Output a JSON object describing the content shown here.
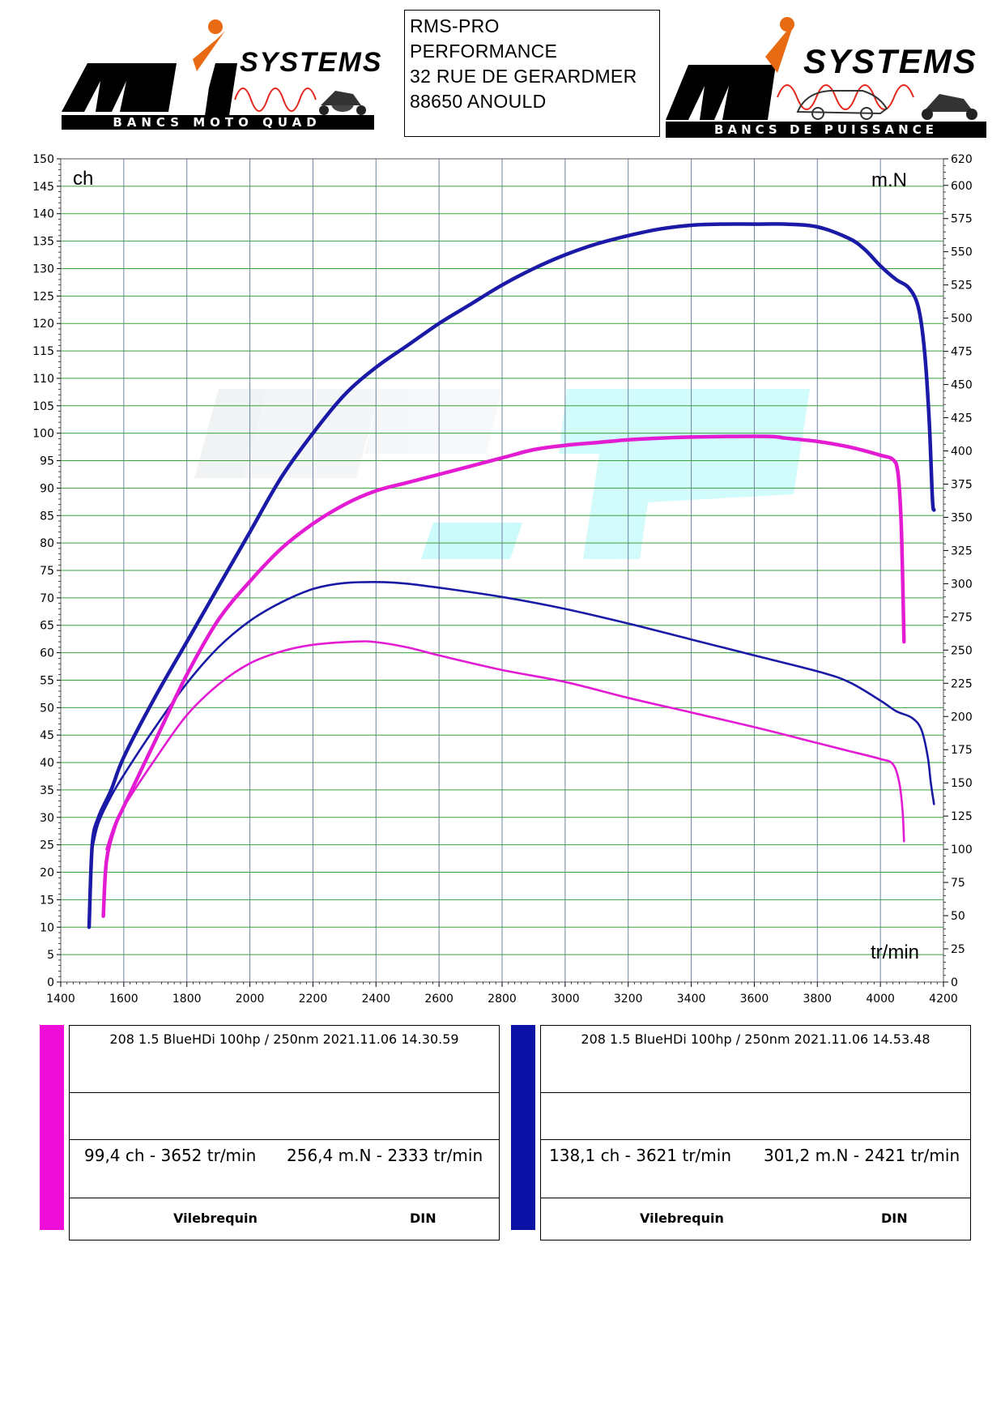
{
  "header": {
    "left_logo": {
      "brand_text": "SYSTEMS",
      "letters": "Mi",
      "tagline": "BANCS MOTO QUAD"
    },
    "right_logo": {
      "brand_text": "SYSTEMS",
      "letters": "Mi",
      "tagline": "BANCS DE PUISSANCE"
    },
    "address": [
      "RMS-PRO",
      "PERFORMANCE",
      "32 RUE DE GERARDMER",
      "88650 ANOULD"
    ]
  },
  "chart_data": {
    "type": "line",
    "x_label": "tr/min",
    "y_left_label": "ch",
    "y_right_label": "m.N",
    "xlim": [
      1400,
      4200
    ],
    "y_left_lim": [
      0,
      150
    ],
    "y_right_lim": [
      0,
      620
    ],
    "x_ticks": [
      1400,
      1600,
      1800,
      2000,
      2200,
      2400,
      2600,
      2800,
      3000,
      3200,
      3400,
      3600,
      3800,
      4000,
      4200
    ],
    "y_left_ticks": [
      0,
      5,
      10,
      15,
      20,
      25,
      30,
      35,
      40,
      45,
      50,
      55,
      60,
      65,
      70,
      75,
      80,
      85,
      90,
      95,
      100,
      105,
      110,
      115,
      120,
      125,
      130,
      135,
      140,
      145,
      150
    ],
    "y_right_ticks": [
      0,
      25,
      50,
      75,
      100,
      125,
      150,
      175,
      200,
      225,
      250,
      275,
      300,
      325,
      350,
      375,
      400,
      425,
      450,
      475,
      500,
      525,
      550,
      575,
      600,
      620
    ],
    "grid": true,
    "series": [
      {
        "run": "blue",
        "quantity": "power",
        "axis": "left",
        "color": "#1a1aa6",
        "points": [
          [
            1490,
            10
          ],
          [
            1500,
            25
          ],
          [
            1520,
            30
          ],
          [
            1560,
            35
          ],
          [
            1600,
            41
          ],
          [
            1700,
            52
          ],
          [
            1800,
            62
          ],
          [
            1900,
            72
          ],
          [
            2000,
            82
          ],
          [
            2100,
            92
          ],
          [
            2200,
            100
          ],
          [
            2300,
            107
          ],
          [
            2400,
            112
          ],
          [
            2500,
            116
          ],
          [
            2600,
            120
          ],
          [
            2700,
            123.5
          ],
          [
            2800,
            127
          ],
          [
            2900,
            130
          ],
          [
            3000,
            132.5
          ],
          [
            3100,
            134.5
          ],
          [
            3200,
            136
          ],
          [
            3300,
            137.2
          ],
          [
            3400,
            137.9
          ],
          [
            3500,
            138.1
          ],
          [
            3600,
            138.1
          ],
          [
            3700,
            138.1
          ],
          [
            3800,
            137.6
          ],
          [
            3900,
            135.5
          ],
          [
            3950,
            133.5
          ],
          [
            4000,
            130.5
          ],
          [
            4050,
            128
          ],
          [
            4090,
            126.5
          ],
          [
            4120,
            123
          ],
          [
            4140,
            115
          ],
          [
            4155,
            102
          ],
          [
            4165,
            88
          ],
          [
            4170,
            86
          ]
        ]
      },
      {
        "run": "blue",
        "quantity": "torque",
        "axis": "right",
        "color": "#1a1aa6",
        "points": [
          [
            1500,
            100
          ],
          [
            1520,
            120
          ],
          [
            1560,
            140
          ],
          [
            1600,
            156
          ],
          [
            1700,
            192
          ],
          [
            1800,
            225
          ],
          [
            1900,
            252
          ],
          [
            2000,
            272
          ],
          [
            2100,
            286
          ],
          [
            2200,
            296
          ],
          [
            2300,
            300.5
          ],
          [
            2421,
            301.2
          ],
          [
            2500,
            300
          ],
          [
            2600,
            297
          ],
          [
            2800,
            290
          ],
          [
            3000,
            281
          ],
          [
            3200,
            270
          ],
          [
            3400,
            258
          ],
          [
            3600,
            246
          ],
          [
            3800,
            234
          ],
          [
            3900,
            226
          ],
          [
            4000,
            212
          ],
          [
            4050,
            204
          ],
          [
            4100,
            199
          ],
          [
            4130,
            190
          ],
          [
            4150,
            170
          ],
          [
            4160,
            150
          ],
          [
            4170,
            134
          ]
        ]
      },
      {
        "run": "magenta",
        "quantity": "power",
        "axis": "left",
        "color": "#e31bd3",
        "points": [
          [
            1535,
            12
          ],
          [
            1545,
            22
          ],
          [
            1570,
            28
          ],
          [
            1600,
            32
          ],
          [
            1700,
            44
          ],
          [
            1800,
            56
          ],
          [
            1900,
            66
          ],
          [
            2000,
            73
          ],
          [
            2100,
            79
          ],
          [
            2200,
            83.5
          ],
          [
            2300,
            87
          ],
          [
            2400,
            89.5
          ],
          [
            2500,
            91
          ],
          [
            2600,
            92.5
          ],
          [
            2700,
            94
          ],
          [
            2800,
            95.5
          ],
          [
            2900,
            97
          ],
          [
            3000,
            97.8
          ],
          [
            3100,
            98.3
          ],
          [
            3200,
            98.8
          ],
          [
            3300,
            99.1
          ],
          [
            3400,
            99.3
          ],
          [
            3500,
            99.4
          ],
          [
            3652,
            99.4
          ],
          [
            3700,
            99.1
          ],
          [
            3800,
            98.5
          ],
          [
            3900,
            97.5
          ],
          [
            4000,
            96
          ],
          [
            4040,
            95.2
          ],
          [
            4055,
            93
          ],
          [
            4065,
            85
          ],
          [
            4070,
            75
          ],
          [
            4075,
            62
          ]
        ]
      },
      {
        "run": "magenta",
        "quantity": "torque",
        "axis": "right",
        "color": "#e31bd3",
        "points": [
          [
            1545,
            100
          ],
          [
            1570,
            118
          ],
          [
            1600,
            132
          ],
          [
            1700,
            168
          ],
          [
            1800,
            201
          ],
          [
            1900,
            224
          ],
          [
            2000,
            240
          ],
          [
            2100,
            249
          ],
          [
            2200,
            254
          ],
          [
            2333,
            256.4
          ],
          [
            2400,
            256
          ],
          [
            2500,
            252
          ],
          [
            2600,
            246
          ],
          [
            2800,
            235
          ],
          [
            3000,
            226
          ],
          [
            3200,
            214
          ],
          [
            3400,
            203
          ],
          [
            3600,
            192
          ],
          [
            3800,
            180
          ],
          [
            3900,
            174
          ],
          [
            4000,
            168
          ],
          [
            4040,
            164
          ],
          [
            4060,
            150
          ],
          [
            4070,
            130
          ],
          [
            4075,
            106
          ]
        ]
      }
    ]
  },
  "cards": [
    {
      "title": "208 1.5 BlueHDi 100hp / 250nm    2021.11.06 14.30.59",
      "power_peak": "99,4 ch - 3652 tr/min",
      "torque_peak": "256,4 m.N - 2333 tr/min",
      "foot_left": "Vilebrequin",
      "foot_right": "DIN",
      "color": "#ee0dd6"
    },
    {
      "title": "208 1.5 BlueHDi 100hp / 250nm    2021.11.06 14.53.48",
      "power_peak": "138,1 ch - 3621 tr/min",
      "torque_peak": "301,2 m.N - 2421 tr/min",
      "foot_left": "Vilebrequin",
      "foot_right": "DIN",
      "color": "#0b13a6"
    }
  ]
}
